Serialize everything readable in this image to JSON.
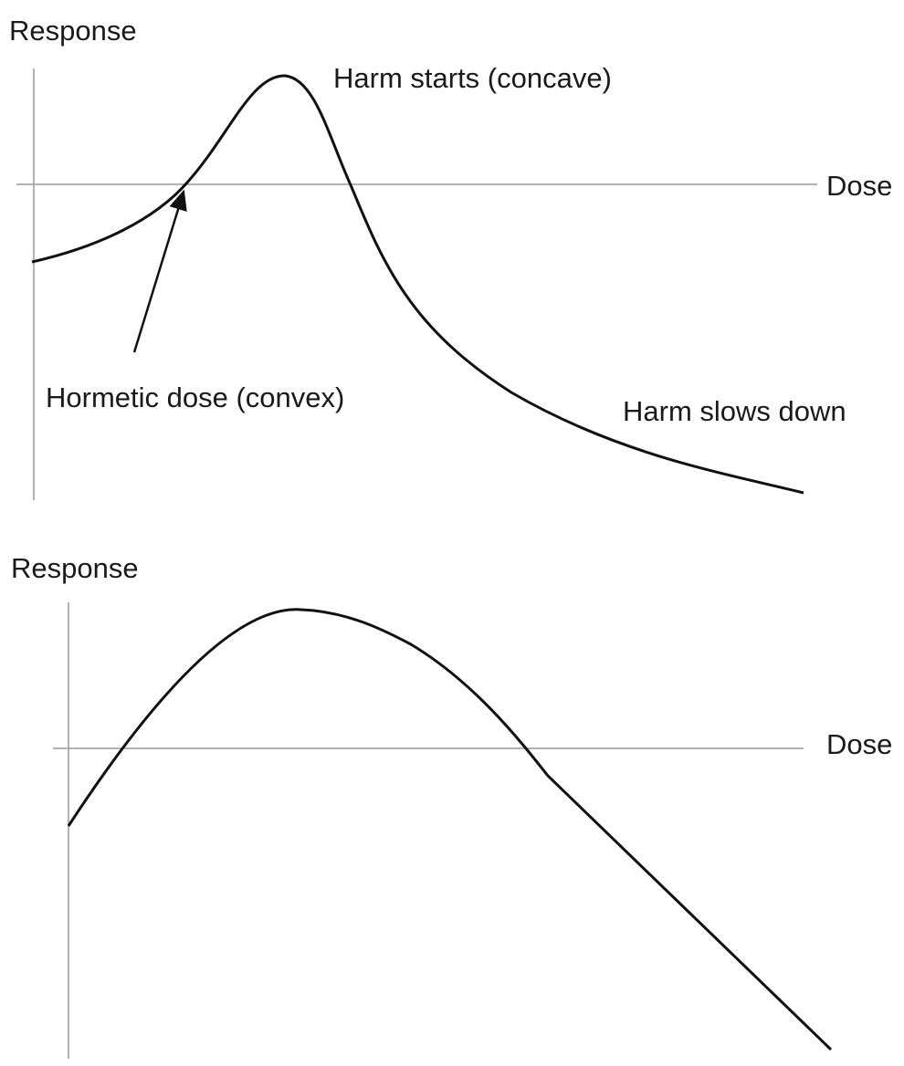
{
  "diagrams": [
    {
      "y_label": "Response",
      "x_label": "Dose",
      "annotations": [
        "Harm starts (concave)",
        "Hormetic dose (convex)",
        "Harm slows down"
      ]
    },
    {
      "y_label": "Response",
      "x_label": "Dose"
    }
  ]
}
